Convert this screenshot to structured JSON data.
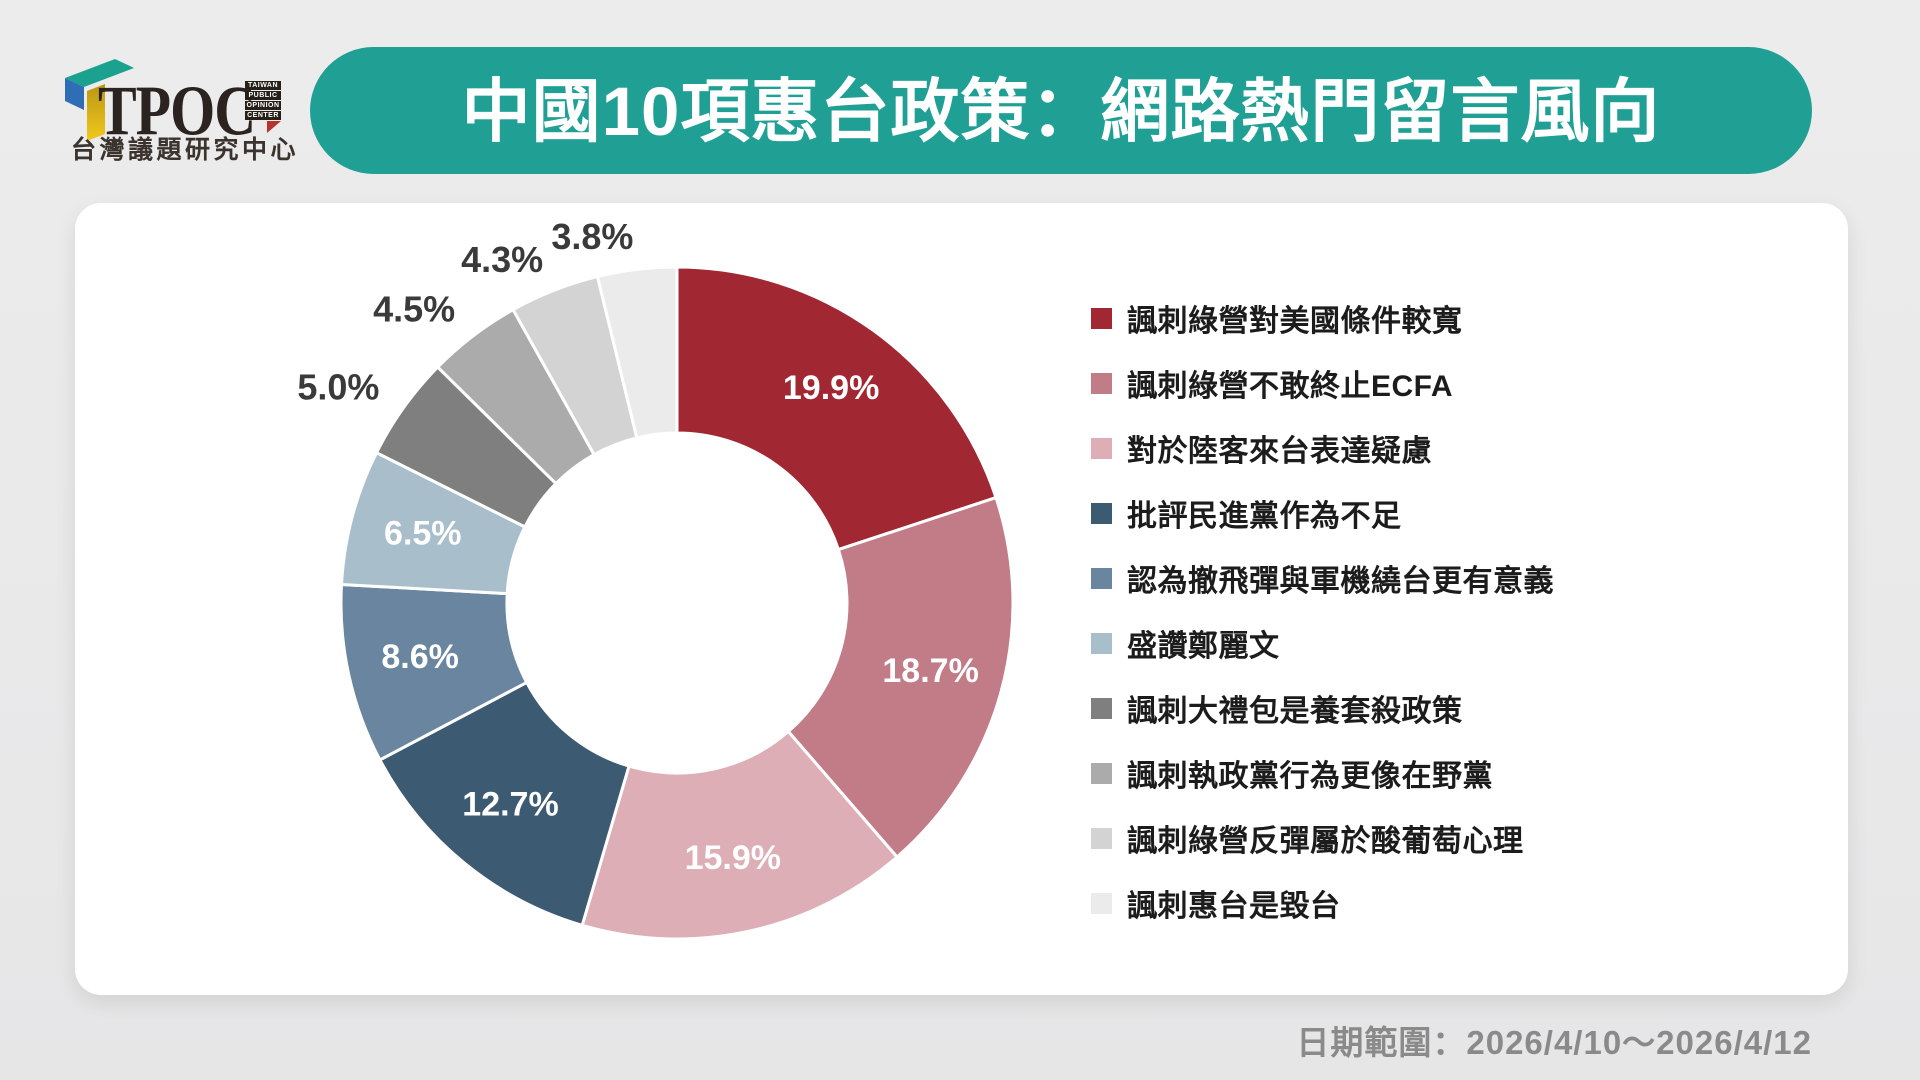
{
  "logo": {
    "brand": "TPOC",
    "badges": [
      "TAIWAN",
      "PUBLIC",
      "OPINION",
      "CENTER"
    ],
    "subtitle": "台灣議題研究中心",
    "colors": {
      "teal": "#1aa28f",
      "blue": "#2f6eb5",
      "yellow": "#f2c91c",
      "dark": "#262019",
      "red": "#b5342c"
    }
  },
  "header": {
    "title": "中國10項惠台政策：網路熱門留言風向",
    "bg": "#20a095",
    "text_color": "#ffffff"
  },
  "chart_data": {
    "type": "pie",
    "subtype": "donut",
    "unit": "%",
    "direction": "clockwise",
    "start_angle_deg": 0,
    "inner_radius_ratio": 0.506,
    "label_threshold_inside": 6.0,
    "legend_position": "right",
    "labels": [
      "諷刺綠營對美國條件較寬",
      "諷刺綠營不敢終止ECFA",
      "對於陸客來台表達疑慮",
      "批評民進黨作為不足",
      "認為撤飛彈與軍機繞台更有意義",
      "盛讚鄭麗文",
      "諷刺大禮包是養套殺政策",
      "諷刺執政黨行為更像在野黨",
      "諷刺綠營反彈屬於酸葡萄心理",
      "諷刺惠台是毀台"
    ],
    "values": [
      19.9,
      18.7,
      15.9,
      12.7,
      8.6,
      6.5,
      5.0,
      4.5,
      4.3,
      3.8
    ],
    "colors": [
      "#a12833",
      "#c17c88",
      "#ddaeb6",
      "#3d5a73",
      "#69859f",
      "#a9becb",
      "#7f7f7f",
      "#ababab",
      "#d3d3d3",
      "#ebebeb"
    ],
    "inside_label_color": "#ffffff",
    "outside_label_color": "#3a3a3a"
  },
  "footer": {
    "date_range_label": "日期範圍：2026/4/10～2026/4/12"
  }
}
